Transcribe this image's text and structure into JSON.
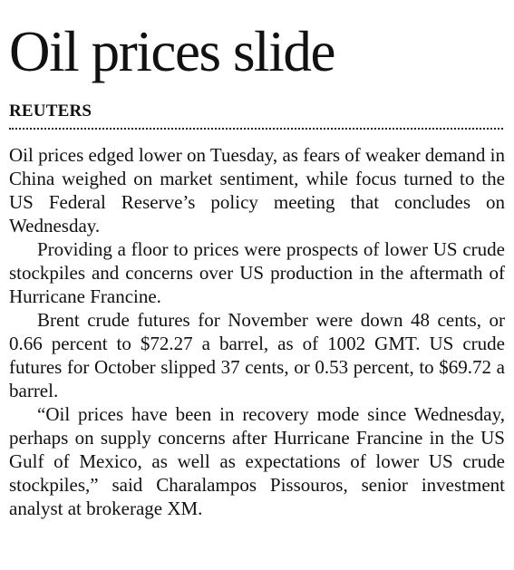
{
  "article": {
    "headline": "Oil prices slide",
    "byline": "REUTERS",
    "paragraphs": [
      "Oil prices edged lower on Tuesday, as fears of weaker demand in China weighed on market sentiment, while focus turned to the US Federal Reserve’s policy meeting that concludes on Wednesday.",
      "Providing a floor to prices were prospects of lower US crude stockpiles and concerns over US production in the aftermath of Hurricane Francine.",
      "Brent crude futures for November were down 48 cents, or 0.66 percent to $72.27 a barrel, as of 1002 GMT. US crude futures for October slipped 37 cents, or 0.53 percent, to $69.72 a barrel.",
      "“Oil prices have been in recovery mode since Wednesday, perhaps on supply concerns after Hurricane Francine in the US Gulf of Mexico, as well as expectations of lower US crude stockpiles,” said Charalampos Pissouros, senior investment analyst at brokerage XM."
    ]
  }
}
